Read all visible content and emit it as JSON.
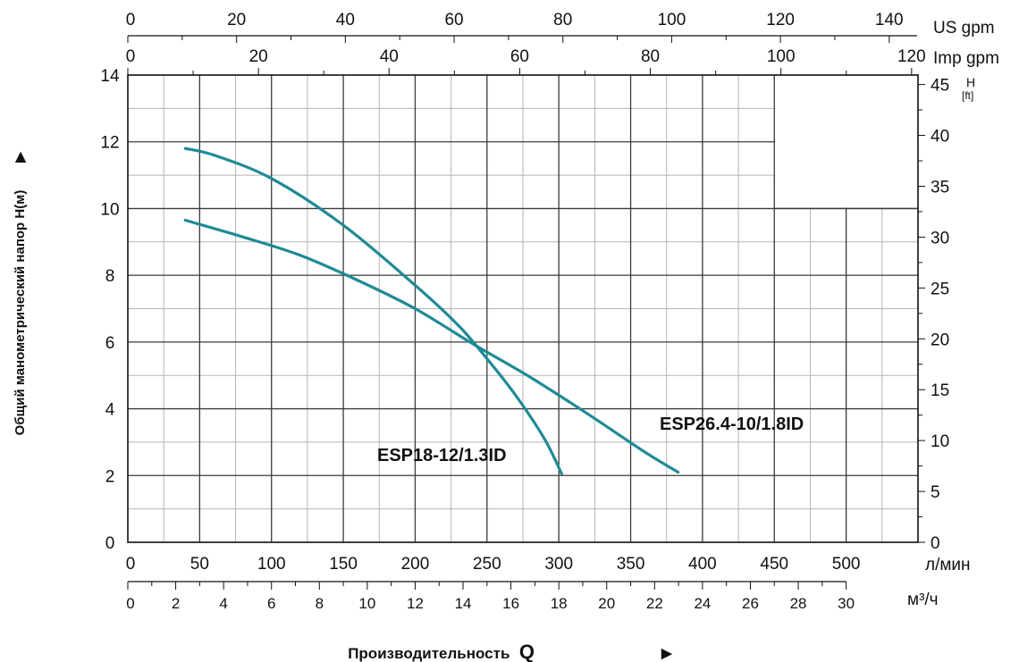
{
  "chart_data": {
    "type": "line",
    "x_unit": "л/мин",
    "x_range": [
      0,
      550
    ],
    "y_range": [
      0,
      14
    ],
    "xlabel_prefix": "Производительность",
    "xlabel_symbol": "Q",
    "ylabel": "Общий манометрический напор H(м)",
    "x_ticks": [
      0,
      50,
      100,
      150,
      200,
      250,
      300,
      350,
      400,
      450,
      500
    ],
    "y_ticks": [
      0,
      2,
      4,
      6,
      8,
      10,
      12,
      14
    ],
    "grid": true,
    "series": [
      {
        "name": "ESP18-12/1.3ID",
        "color": "#1f8a96",
        "x": [
          40,
          60,
          100,
          150,
          200,
          230,
          250,
          270,
          290,
          302
        ],
        "y": [
          11.8,
          11.6,
          10.9,
          9.5,
          7.7,
          6.5,
          5.5,
          4.4,
          3.1,
          2.05
        ]
      },
      {
        "name": "ESP26.4-10/1.8ID",
        "color": "#1f8a96",
        "x": [
          40,
          80,
          120,
          160,
          200,
          240,
          280,
          320,
          360,
          383
        ],
        "y": [
          9.65,
          9.15,
          8.6,
          7.85,
          7.0,
          5.95,
          4.95,
          3.85,
          2.7,
          2.1
        ]
      }
    ],
    "secondary_axes": {
      "us_gpm": {
        "label": "US gpm",
        "ticks": [
          "0",
          "20",
          "40",
          "60",
          "80",
          "100",
          "120",
          "140"
        ],
        "factor": 0.264172
      },
      "imp_gpm": {
        "label": "Imp gpm",
        "ticks": [
          "0",
          "20",
          "40",
          "60",
          "80",
          "100",
          "120"
        ],
        "factor": 0.219969
      },
      "m3h": {
        "label": "м³/ч",
        "ticks": [
          "0",
          "2",
          "4",
          "6",
          "8",
          "10",
          "12",
          "14",
          "16",
          "18",
          "20",
          "22",
          "24",
          "26",
          "28",
          "30"
        ],
        "factor": 0.06
      },
      "ft": {
        "label_top": "H",
        "label_bottom": "[ft]",
        "ticks": [
          "0",
          "5",
          "10",
          "15",
          "20",
          "25",
          "30",
          "35",
          "40",
          "45"
        ],
        "factor": 3.28084
      }
    }
  }
}
